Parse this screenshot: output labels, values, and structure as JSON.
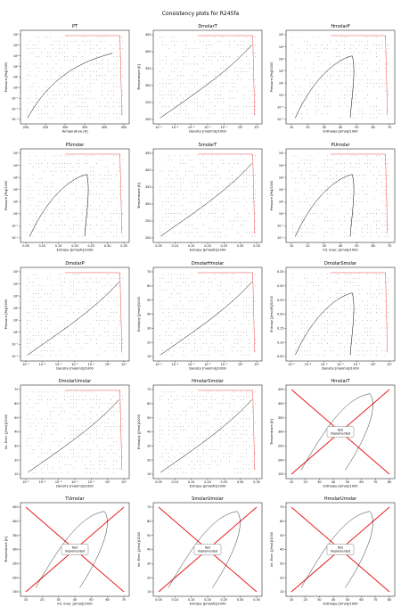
{
  "figure": {
    "suptitle": "Consistency plots for R245fa"
  },
  "colors": {
    "saturation_curve": "#000000",
    "grid_points": "#000000",
    "boundary": "#e8191c",
    "not_implemented_cross": "#e8191c"
  },
  "chart_data": [
    {
      "type": "scatter",
      "title": "PT",
      "xlabel": "Temperature [K]",
      "ylabel": "Pressure [Pa]/1000",
      "xticks": [
        "200",
        "250",
        "300",
        "350",
        "400",
        "450"
      ],
      "yticks": [
        "10⁻³",
        "10⁻²",
        "10⁻¹",
        "10⁰",
        "10¹",
        "10²",
        "10³",
        "10⁴",
        "10⁵"
      ],
      "log_y": true
    },
    {
      "type": "scatter",
      "title": "DmolarT",
      "xlabel": "Density [mol/m3]/1000",
      "ylabel": "Temperature [K]",
      "xticks": [
        "10⁻⁵",
        "10⁻⁴",
        "10⁻³",
        "10⁻²",
        "10⁻¹",
        "10⁰",
        "10¹"
      ],
      "yticks": [
        "200",
        "250",
        "300",
        "350",
        "400",
        "450"
      ],
      "log_x": true
    },
    {
      "type": "scatter",
      "title": "HmolarP",
      "xlabel": "Enthalpy [J/mol]/1000",
      "ylabel": "Pressure [Pa]/1000",
      "xticks": [
        "10",
        "20",
        "30",
        "40",
        "50",
        "60",
        "70"
      ],
      "yticks": [
        "10⁻²",
        "10⁻¹",
        "10⁰",
        "10¹",
        "10²",
        "10³",
        "10⁴",
        "10⁵"
      ],
      "log_y": true
    },
    {
      "type": "scatter",
      "title": "PSmolar",
      "xlabel": "Entropy [J/mol/K]/1000",
      "ylabel": "Pressure [Pa]/1000",
      "xticks": [
        "0.05",
        "0.10",
        "0.15",
        "0.20",
        "0.25",
        "0.30",
        "0.35"
      ],
      "yticks": [
        "10⁻²",
        "10⁻¹",
        "10⁰",
        "10¹",
        "10²",
        "10³",
        "10⁴",
        "10⁵"
      ],
      "log_y": true
    },
    {
      "type": "scatter",
      "title": "SmolarT",
      "xlabel": "Entropy [J/mol/K]/1000",
      "ylabel": "Temperature [K]",
      "xticks": [
        "0.05",
        "0.10",
        "0.15",
        "0.20",
        "0.25",
        "0.30",
        "0.35"
      ],
      "yticks": [
        "200",
        "250",
        "300",
        "350",
        "400",
        "450"
      ]
    },
    {
      "type": "scatter",
      "title": "PUmolar",
      "xlabel": "Int. Ener. [J/mol]/1000",
      "ylabel": "Pressure [Pa]/1000",
      "xticks": [
        "10",
        "20",
        "30",
        "40",
        "50",
        "60",
        "70"
      ],
      "yticks": [
        "10⁻²",
        "10⁻¹",
        "10⁰",
        "10¹",
        "10²",
        "10³",
        "10⁴",
        "10⁵"
      ],
      "log_y": true
    },
    {
      "type": "scatter",
      "title": "DmolarP",
      "xlabel": "Density [mol/m3]/1000",
      "ylabel": "Pressure [Pa]/1000",
      "xticks": [
        "10⁻⁵",
        "10⁻⁴",
        "10⁻³",
        "10⁻²",
        "10⁻¹",
        "10⁰",
        "10¹"
      ],
      "yticks": [
        "10⁻²",
        "10⁻¹",
        "10⁰",
        "10¹",
        "10²",
        "10³",
        "10⁴",
        "10⁵"
      ],
      "log_x": true,
      "log_y": true
    },
    {
      "type": "scatter",
      "title": "DmolarHmolar",
      "xlabel": "Density [mol/m3]/1000",
      "ylabel": "Enthalpy [J/mol]/1000",
      "xticks": [
        "10⁻⁵",
        "10⁻⁴",
        "10⁻³",
        "10⁻²",
        "10⁻¹",
        "10⁰",
        "10¹"
      ],
      "yticks": [
        "10",
        "20",
        "30",
        "40",
        "50",
        "60",
        "70"
      ],
      "log_x": true
    },
    {
      "type": "scatter",
      "title": "DmolarSmolar",
      "xlabel": "Density [mol/m3]/1000",
      "ylabel": "Entropy [J/mol/K]/1000",
      "xticks": [
        "10⁻⁵",
        "10⁻⁴",
        "10⁻³",
        "10⁻²",
        "10⁻¹",
        "10⁰",
        "10¹"
      ],
      "yticks": [
        "0.05",
        "0.10",
        "0.15",
        "0.20",
        "0.25",
        "0.30",
        "0.35"
      ],
      "log_x": true
    },
    {
      "type": "scatter",
      "title": "DmolarUmolar",
      "xlabel": "Density [mol/m3]/1000",
      "ylabel": "Int. Ener. [J/mol]/1000",
      "xticks": [
        "10⁻⁵",
        "10⁻⁴",
        "10⁻³",
        "10⁻²",
        "10⁻¹",
        "10⁰",
        "10¹"
      ],
      "yticks": [
        "10",
        "20",
        "30",
        "40",
        "50",
        "60",
        "70"
      ],
      "log_x": true
    },
    {
      "type": "scatter",
      "title": "HmolarSmolar",
      "xlabel": "Entropy [J/mol/K]/1000",
      "ylabel": "Enthalpy [J/mol]/1000",
      "xticks": [
        "0.05",
        "0.10",
        "0.15",
        "0.20",
        "0.25",
        "0.30",
        "0.35"
      ],
      "yticks": [
        "10",
        "20",
        "30",
        "40",
        "50",
        "60",
        "70"
      ]
    },
    {
      "type": "scatter",
      "title": "HmolarT",
      "xlabel": "Enthalpy [J/mol]/1000",
      "ylabel": "Temperature [K]",
      "xticks": [
        "10",
        "20",
        "30",
        "40",
        "50",
        "60",
        "70",
        "80"
      ],
      "yticks": [
        "150",
        "200",
        "250",
        "300",
        "350",
        "400",
        "450"
      ],
      "not_implemented": "Not\nImplemented"
    },
    {
      "type": "scatter",
      "title": "TUmolar",
      "xlabel": "Int. Ener. [J/mol]/1000",
      "ylabel": "Temperature [K]",
      "xticks": [
        "10",
        "20",
        "30",
        "40",
        "50",
        "60",
        "70"
      ],
      "yticks": [
        "150",
        "200",
        "250",
        "300",
        "350",
        "400",
        "450"
      ],
      "not_implemented": "Not\nImplemented"
    },
    {
      "type": "scatter",
      "title": "SmolarUmolar",
      "xlabel": "Entropy [J/mol/K]/1000",
      "ylabel": "Int. Ener. [J/mol]/1000",
      "xticks": [
        "0.05",
        "0.10",
        "0.15",
        "0.20",
        "0.25",
        "0.30",
        "0.35"
      ],
      "yticks": [
        "10",
        "20",
        "30",
        "40",
        "50",
        "60",
        "70"
      ],
      "not_implemented": "Not\nImplemented"
    },
    {
      "type": "scatter",
      "title": "HmolarUmolar",
      "xlabel": "Enthalpy [J/mol]/1000",
      "ylabel": "Int. Ener. [J/mol]/1000",
      "xticks": [
        "10",
        "20",
        "30",
        "40",
        "50",
        "60",
        "70",
        "80"
      ],
      "yticks": [
        "10",
        "20",
        "30",
        "40",
        "50",
        "60",
        "70"
      ],
      "not_implemented": "Not\nImplemented"
    }
  ]
}
